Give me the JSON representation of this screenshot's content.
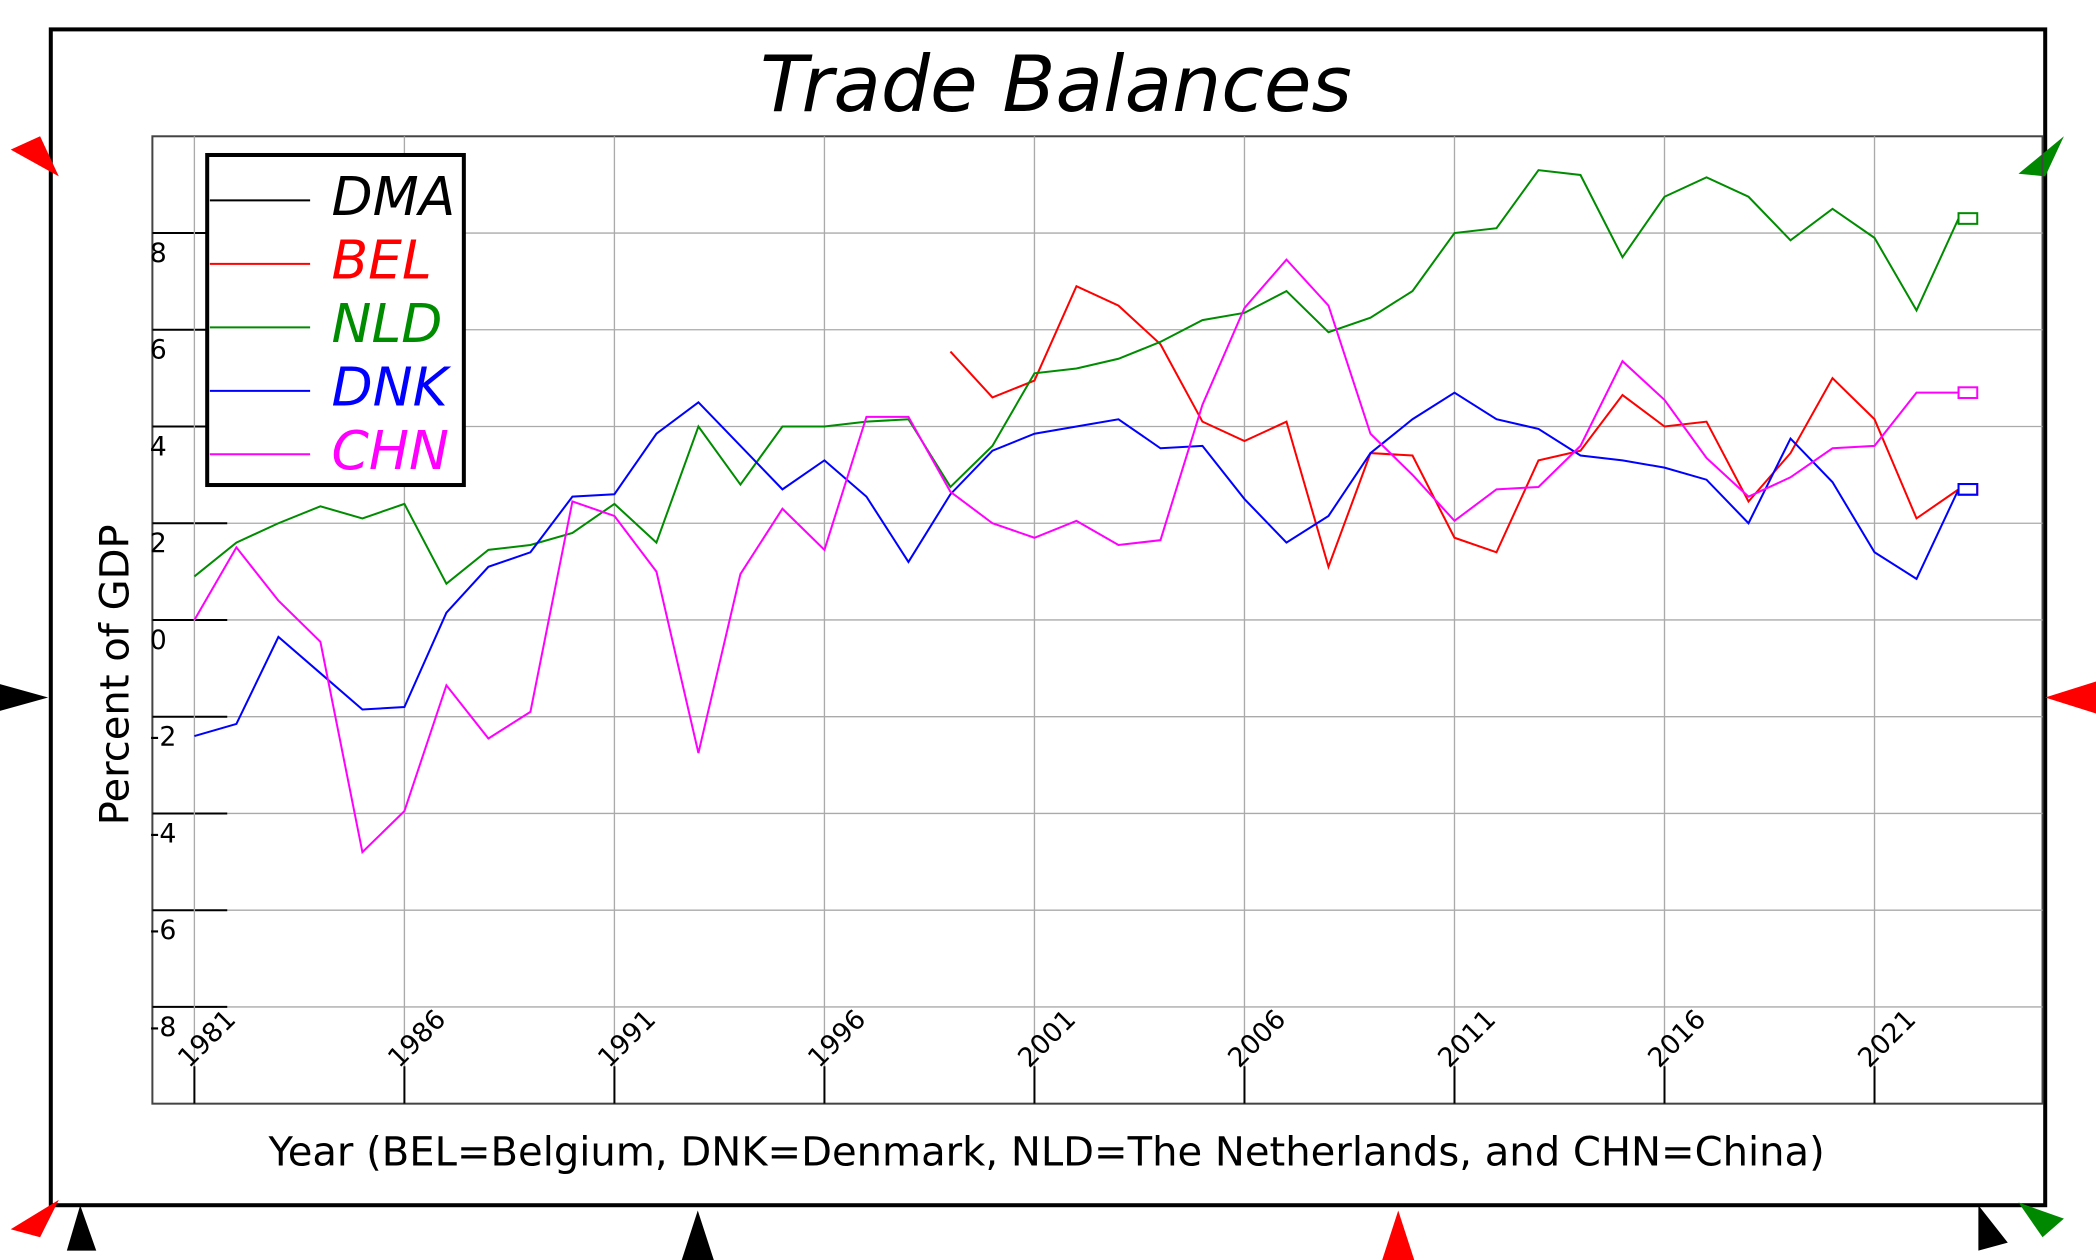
{
  "chart_data": {
    "type": "line",
    "title": "Trade Balances",
    "xlabel": "Year (BEL=Belgium, DNK=Denmark, NLD=The Netherlands, and CHN=China)",
    "ylabel": "Percent of GDP",
    "x": [
      1981,
      1982,
      1983,
      1984,
      1985,
      1986,
      1987,
      1988,
      1989,
      1990,
      1991,
      1992,
      1993,
      1994,
      1995,
      1996,
      1997,
      1998,
      1999,
      2000,
      2001,
      2002,
      2003,
      2004,
      2005,
      2006,
      2007,
      2008,
      2009,
      2010,
      2011,
      2012,
      2013,
      2014,
      2015,
      2016,
      2017,
      2018,
      2019,
      2020,
      2021,
      2022,
      2023
    ],
    "series": [
      {
        "name": "DMA",
        "color": "#000000",
        "values": [
          null,
          null,
          null,
          null,
          null,
          null,
          null,
          null,
          null,
          null,
          null,
          null,
          null,
          null,
          null,
          null,
          null,
          null,
          null,
          null,
          null,
          null,
          null,
          null,
          null,
          null,
          null,
          null,
          null,
          null,
          null,
          null,
          null,
          null,
          null,
          null,
          null,
          null,
          null,
          null,
          null,
          null,
          null
        ]
      },
      {
        "name": "BEL",
        "color": "#ff0000",
        "values": [
          null,
          null,
          null,
          null,
          null,
          null,
          null,
          null,
          null,
          null,
          null,
          null,
          null,
          null,
          null,
          null,
          null,
          null,
          5.55,
          4.6,
          4.95,
          6.9,
          6.5,
          5.7,
          4.1,
          3.7,
          4.1,
          1.1,
          3.45,
          3.4,
          1.7,
          1.4,
          3.3,
          3.5,
          4.65,
          4.0,
          4.1,
          2.45,
          3.45,
          5.0,
          4.15,
          2.1,
          2.7
        ]
      },
      {
        "name": "NLD",
        "color": "#008c00",
        "values": [
          0.9,
          1.6,
          2.0,
          2.35,
          2.1,
          2.4,
          0.75,
          1.45,
          1.55,
          1.8,
          2.4,
          1.6,
          4.0,
          2.8,
          4.0,
          4.0,
          4.1,
          4.15,
          2.75,
          3.6,
          5.1,
          5.2,
          5.4,
          5.75,
          6.2,
          6.35,
          6.8,
          5.95,
          6.25,
          6.8,
          8.0,
          8.1,
          9.3,
          9.2,
          7.5,
          8.75,
          9.15,
          8.75,
          7.85,
          8.5,
          7.9,
          6.4,
          8.3
        ]
      },
      {
        "name": "DNK",
        "color": "#0000ff",
        "values": [
          -2.4,
          -2.15,
          -0.35,
          -1.1,
          -1.85,
          -1.8,
          0.15,
          1.1,
          1.4,
          2.55,
          2.6,
          3.85,
          4.5,
          3.6,
          2.7,
          3.3,
          2.55,
          1.2,
          2.6,
          3.5,
          3.85,
          4.0,
          4.15,
          3.55,
          3.6,
          2.5,
          1.6,
          2.15,
          3.45,
          4.15,
          4.7,
          4.15,
          3.95,
          3.4,
          3.3,
          3.15,
          2.9,
          2.0,
          3.75,
          2.85,
          1.4,
          0.85,
          2.7
        ]
      },
      {
        "name": "CHN",
        "color": "#ff00ff",
        "values": [
          0,
          1.5,
          0.4,
          -0.45,
          -4.8,
          -3.95,
          -1.35,
          -2.45,
          -1.9,
          2.45,
          2.15,
          1.0,
          -2.75,
          0.95,
          2.3,
          1.45,
          4.2,
          4.2,
          2.65,
          2.0,
          1.7,
          2.05,
          1.55,
          1.65,
          4.45,
          6.45,
          7.45,
          6.5,
          3.85,
          3.0,
          2.05,
          2.7,
          2.75,
          3.6,
          5.35,
          4.55,
          3.35,
          2.55,
          2.95,
          3.55,
          3.6,
          4.7,
          4.7
        ]
      }
    ],
    "xlim": [
      1980,
      2025
    ],
    "xticks": [
      1981,
      1986,
      1991,
      1996,
      2001,
      2006,
      2011,
      2016,
      2021
    ],
    "ylim": [
      -10,
      10
    ],
    "yticks": [
      -8,
      -6,
      -4,
      -2,
      0,
      2,
      4,
      6,
      8
    ],
    "grid": true,
    "legend": "upper left"
  }
}
